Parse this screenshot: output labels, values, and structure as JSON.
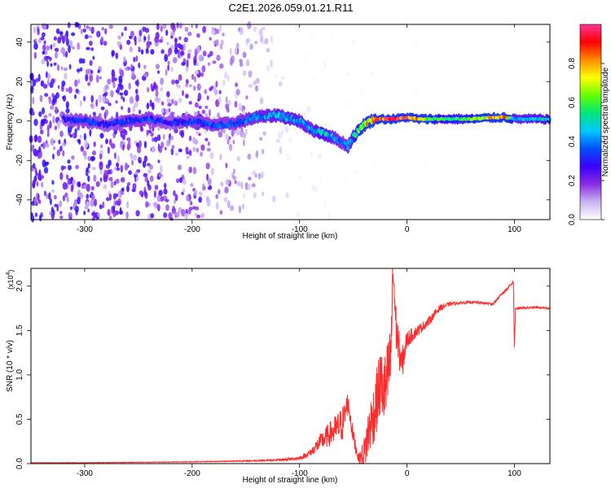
{
  "title": "C2E1.2026.059.01.21.R11",
  "chart_data": [
    {
      "type": "heatmap",
      "title": "C2E1.2026.059.01.21.R11",
      "xlabel": "Height of straight line (km)",
      "ylabel": "Frequency (Hz)",
      "xlim": [
        -350,
        133
      ],
      "ylim": [
        -50,
        49
      ],
      "xticks": [
        -300,
        -200,
        -100,
        0,
        100
      ],
      "yticks": [
        -40,
        -20,
        0,
        20,
        40
      ],
      "xtick_labels": [
        "-300",
        "-200",
        "-100",
        "0",
        "100"
      ],
      "ytick_labels": [
        "-40",
        "-20",
        "0",
        "20",
        "40"
      ],
      "colorbar": {
        "label": "Normalized spectral amplitude",
        "range": [
          0,
          1
        ],
        "ticks": [
          0.0,
          0.2,
          0.4,
          0.6,
          0.8
        ],
        "tick_labels": [
          "0.0",
          "0.2",
          "0.4",
          "0.6",
          "0.8"
        ],
        "colors": [
          "#ffffff",
          "#c9b4f0",
          "#8a2be2",
          "#3a00ff",
          "#0050ff",
          "#00c8ff",
          "#00e67a",
          "#66ff00",
          "#ffff00",
          "#ff8c00",
          "#ff0000",
          "#ff3399"
        ]
      },
      "ridge": {
        "x": [
          -320,
          -300,
          -280,
          -260,
          -240,
          -220,
          -200,
          -180,
          -160,
          -140,
          -120,
          -100,
          -90,
          -80,
          -70,
          -60,
          -55,
          -50,
          -40,
          -30,
          -20,
          -10,
          0,
          10,
          30,
          60,
          90,
          100,
          133
        ],
        "freq": [
          1,
          0,
          -2,
          0,
          1,
          -1,
          0,
          -2,
          -1,
          2,
          3,
          0,
          -4,
          -6,
          -8,
          -11,
          -13,
          -8,
          -2,
          1,
          1,
          1,
          2,
          1,
          1,
          1,
          2,
          1,
          1
        ],
        "amplitude": [
          0.3,
          0.35,
          0.3,
          0.35,
          0.35,
          0.3,
          0.35,
          0.35,
          0.35,
          0.4,
          0.45,
          0.45,
          0.4,
          0.5,
          0.45,
          0.35,
          0.4,
          0.5,
          0.7,
          0.85,
          0.9,
          0.95,
          0.9,
          0.75,
          0.55,
          0.6,
          0.9,
          0.45,
          0.5
        ]
      },
      "noise_amplitude_by_height": {
        "x": [
          -350,
          -200,
          -150,
          -120,
          -100,
          -50,
          133
        ],
        "level": [
          0.22,
          0.18,
          0.1,
          0.05,
          0.02,
          0.01,
          0
        ]
      }
    },
    {
      "type": "line",
      "xlabel": "Height of straight line (km)",
      "ylabel": "SNR (10 * v/v)",
      "multiplier_label": "(x10",
      "multiplier_exponent": "4",
      "multiplier_close": ")",
      "xlim": [
        -350,
        133
      ],
      "ylim": [
        0,
        2.2
      ],
      "xticks": [
        -300,
        -200,
        -100,
        0,
        100
      ],
      "yticks": [
        0.0,
        0.5,
        1.0,
        1.5,
        2.0
      ],
      "xtick_labels": [
        "-300",
        "-200",
        "-100",
        "0",
        "100"
      ],
      "ytick_labels": [
        "0.0",
        "0.5",
        "1.0",
        "1.5",
        "2.0"
      ],
      "color": "#ff2a2a",
      "series": [
        {
          "name": "SNR",
          "x": [
            -350,
            -300,
            -250,
            -200,
            -150,
            -120,
            -100,
            -90,
            -80,
            -70,
            -60,
            -55,
            -50,
            -45,
            -40,
            -35,
            -30,
            -25,
            -20,
            -15,
            -13,
            -10,
            -5,
            0,
            10,
            20,
            30,
            40,
            60,
            80,
            99,
            100,
            101,
            120,
            133
          ],
          "y": [
            0.01,
            0.01,
            0.015,
            0.02,
            0.03,
            0.04,
            0.06,
            0.12,
            0.25,
            0.35,
            0.45,
            0.7,
            0.3,
            0.05,
            0.1,
            0.4,
            0.6,
            0.9,
            0.8,
            1.2,
            2.2,
            1.5,
            1.1,
            1.4,
            1.5,
            1.6,
            1.75,
            1.8,
            1.82,
            1.8,
            2.05,
            1.3,
            1.75,
            1.76,
            1.75
          ],
          "jitter": [
            0.002,
            0.002,
            0.003,
            0.004,
            0.006,
            0.01,
            0.02,
            0.04,
            0.1,
            0.15,
            0.2,
            0.12,
            0.1,
            0.05,
            0.2,
            0.3,
            0.35,
            0.4,
            0.45,
            0.4,
            0.3,
            0.25,
            0.2,
            0.1,
            0.06,
            0.05,
            0.04,
            0.02,
            0.015,
            0.015,
            0.02,
            0.02,
            0.015,
            0.01,
            0.01
          ]
        }
      ]
    }
  ]
}
